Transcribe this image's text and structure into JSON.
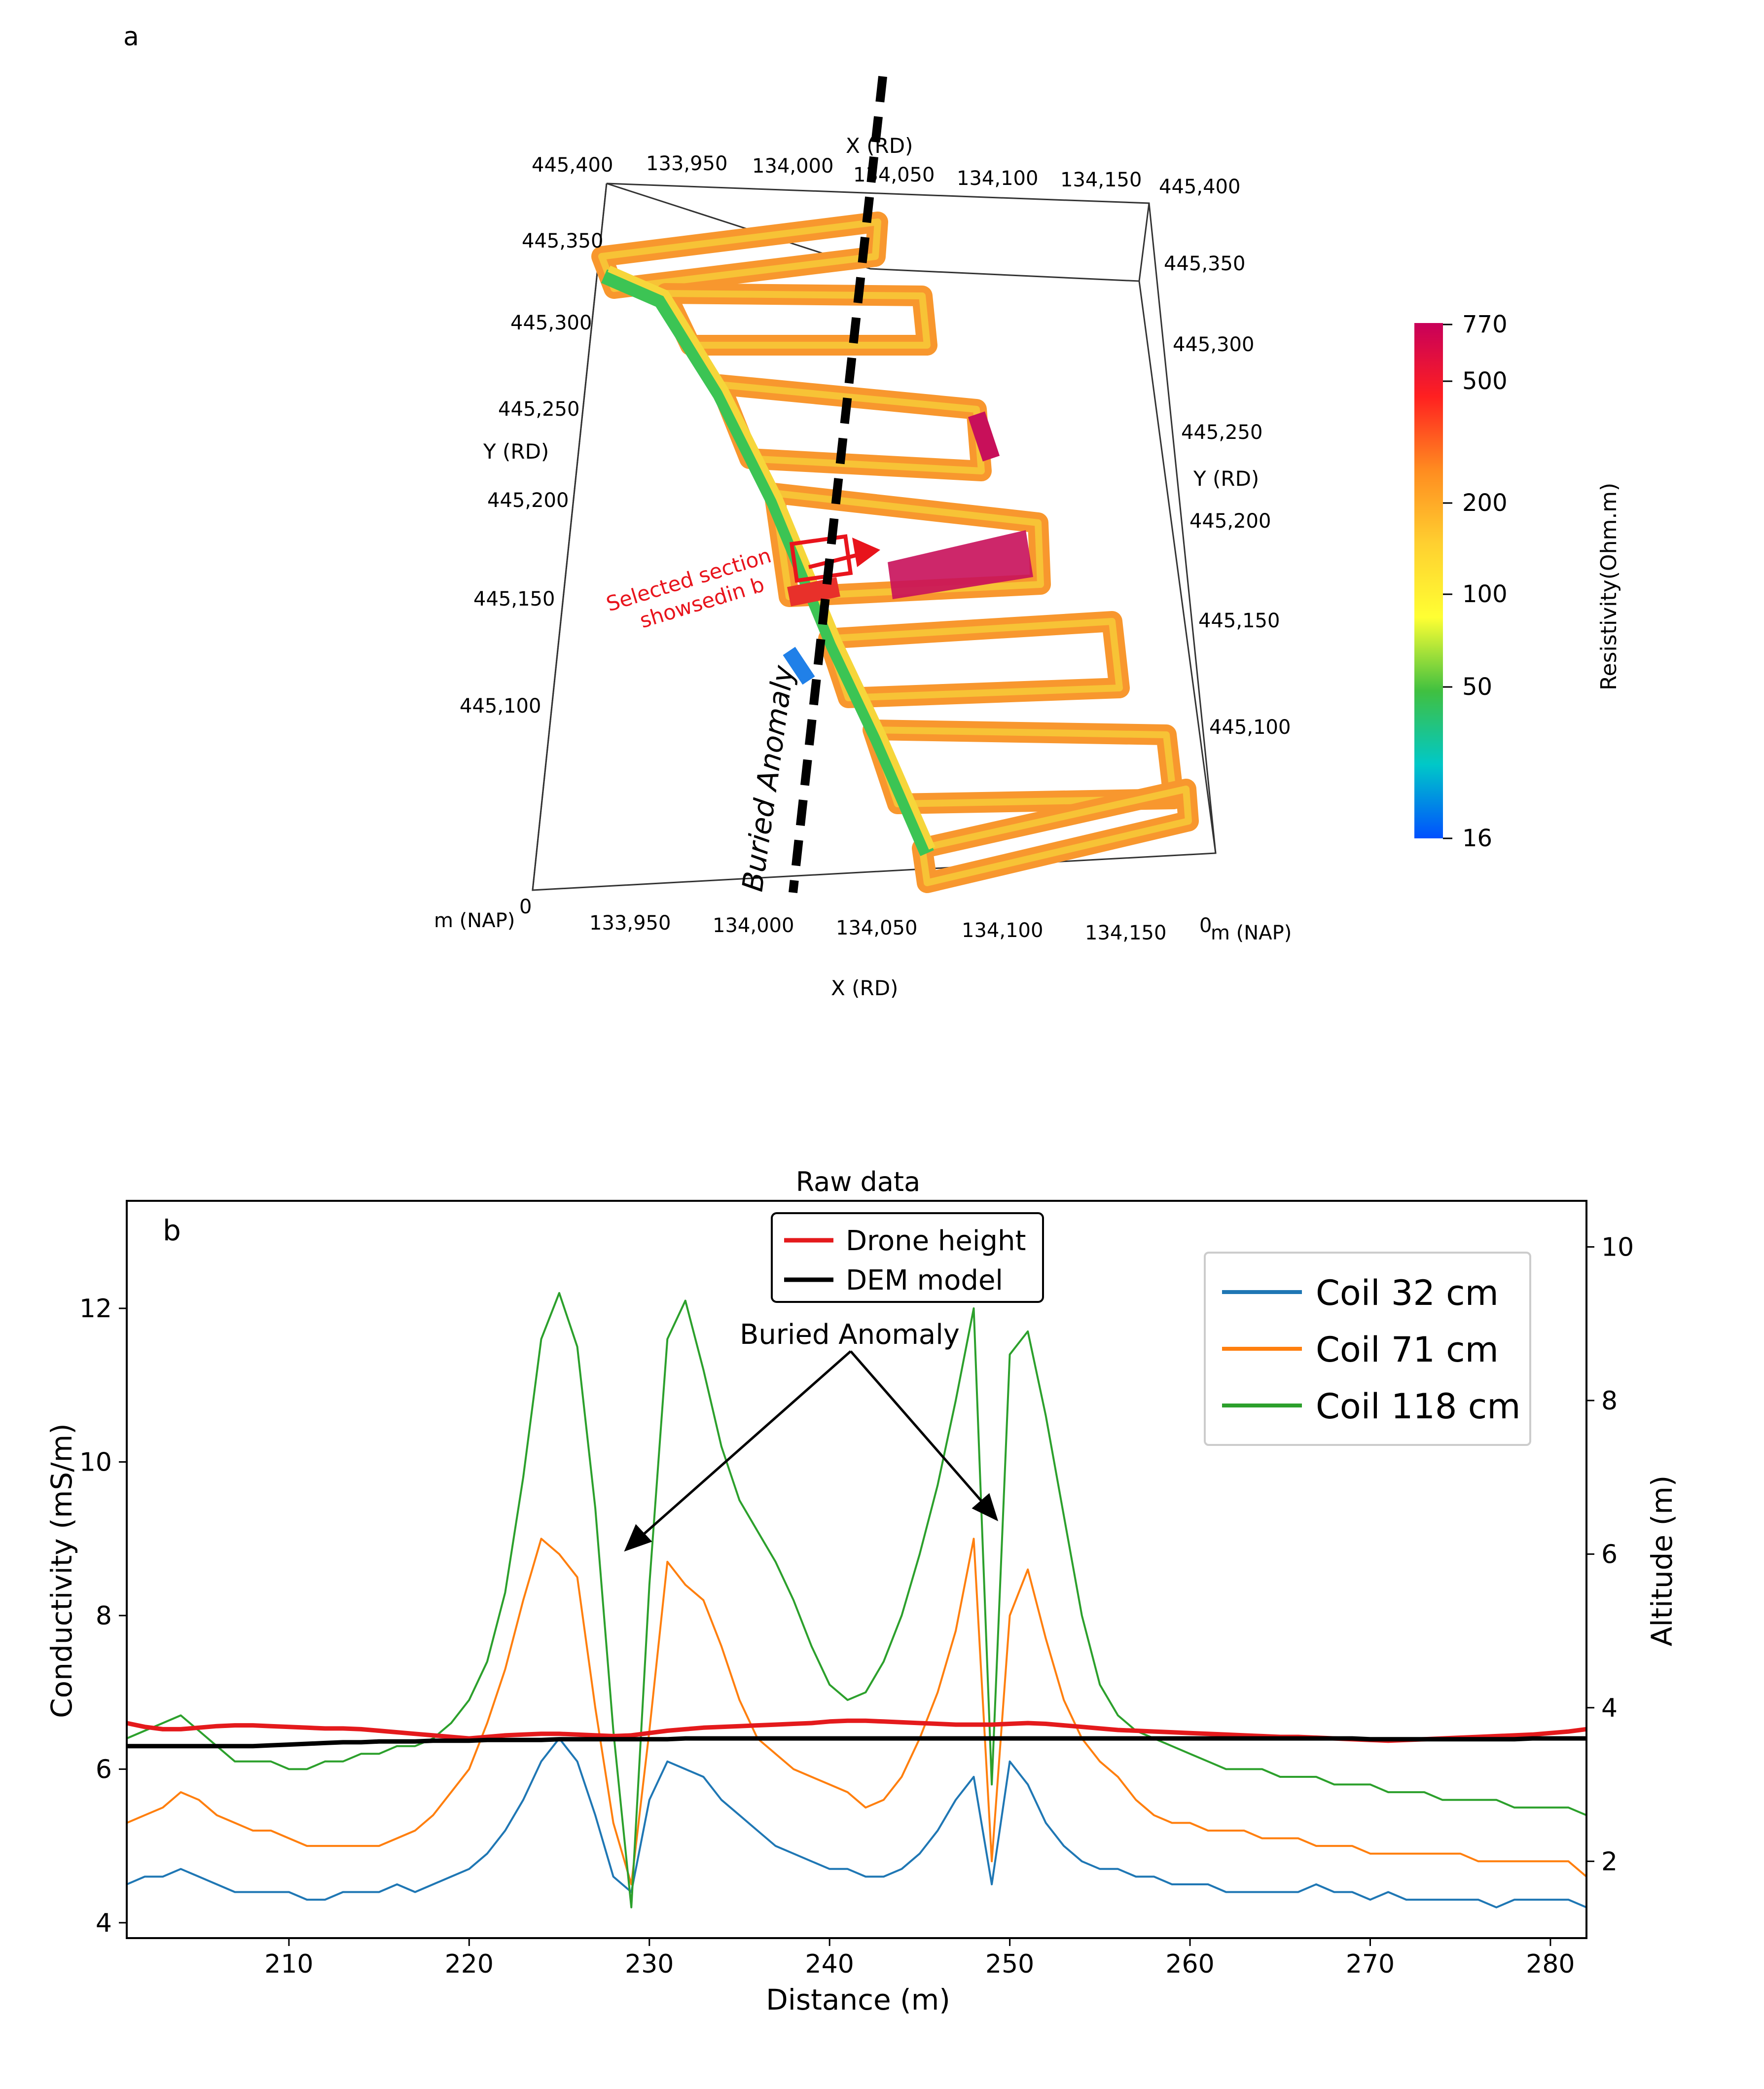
{
  "panel_a": {
    "label": "a",
    "colorbar": {
      "title": "Resistivity(Ohm.m)",
      "ticks": [
        "770",
        "500",
        "200",
        "100",
        "50",
        "16"
      ],
      "stops": [
        "#c8005a",
        "#ff2020",
        "#ff8c20",
        "#ffd030",
        "#ffff33",
        "#40c040",
        "#00c8c8",
        "#0050ff"
      ]
    },
    "annotations": {
      "selected_section": "Selected section\nshowsedin b",
      "buried_anomaly": "Buried Anomaly"
    },
    "axes": {
      "x_label": "X (RD)",
      "y_label": "Y (RD)",
      "z_label": "m (NAP)",
      "z_zero": "0",
      "x_top_ticks": [
        "445,400",
        "133,950",
        "134,000",
        "134,050",
        "134,100",
        "134,150",
        "445,400"
      ],
      "x_bottom_ticks": [
        "133,950",
        "134,000",
        "134,050",
        "134,100",
        "134,150"
      ],
      "y_left_ticks": [
        "445,350",
        "445,300",
        "445,250",
        "445,200",
        "445,150",
        "445,100"
      ],
      "y_right_ticks": [
        "445,350",
        "445,300",
        "445,250",
        "445,200",
        "445,150",
        "445,100"
      ]
    }
  },
  "chart_data": {
    "type": "line",
    "panel_label": "b",
    "title": "Raw data",
    "xlabel": "Distance (m)",
    "ylabel": "Conductivity (mS/m)",
    "y2label": "Altitude (m)",
    "xlim": [
      201,
      282
    ],
    "ylim": [
      3.8,
      13.4
    ],
    "y2lim": [
      1.0,
      10.6
    ],
    "xticks": [
      210,
      220,
      230,
      240,
      250,
      260,
      270,
      280
    ],
    "yticks": [
      4,
      6,
      8,
      10,
      12
    ],
    "y2ticks": [
      2,
      4,
      6,
      8,
      10
    ],
    "annotation": "Buried Anomaly",
    "x": [
      201,
      202,
      203,
      204,
      205,
      206,
      207,
      208,
      209,
      210,
      211,
      212,
      213,
      214,
      215,
      216,
      217,
      218,
      219,
      220,
      221,
      222,
      223,
      224,
      225,
      226,
      227,
      228,
      229,
      230,
      231,
      232,
      233,
      234,
      235,
      236,
      237,
      238,
      239,
      240,
      241,
      242,
      243,
      244,
      245,
      246,
      247,
      248,
      249,
      250,
      251,
      252,
      253,
      254,
      255,
      256,
      257,
      258,
      259,
      260,
      261,
      262,
      263,
      264,
      265,
      266,
      267,
      268,
      269,
      270,
      271,
      272,
      273,
      274,
      275,
      276,
      277,
      278,
      279,
      280,
      281,
      282
    ],
    "series": [
      {
        "name": "Coil 32 cm",
        "axis": "left",
        "color": "#1f77b4",
        "values": [
          4.5,
          4.6,
          4.6,
          4.7,
          4.6,
          4.5,
          4.4,
          4.4,
          4.4,
          4.4,
          4.3,
          4.3,
          4.4,
          4.4,
          4.4,
          4.5,
          4.4,
          4.5,
          4.6,
          4.7,
          4.9,
          5.2,
          5.6,
          6.1,
          6.4,
          6.1,
          5.4,
          4.6,
          4.4,
          5.6,
          6.1,
          6.0,
          5.9,
          5.6,
          5.4,
          5.2,
          5.0,
          4.9,
          4.8,
          4.7,
          4.7,
          4.6,
          4.6,
          4.7,
          4.9,
          5.2,
          5.6,
          5.9,
          4.5,
          6.1,
          5.8,
          5.3,
          5.0,
          4.8,
          4.7,
          4.7,
          4.6,
          4.6,
          4.5,
          4.5,
          4.5,
          4.4,
          4.4,
          4.4,
          4.4,
          4.4,
          4.5,
          4.4,
          4.4,
          4.3,
          4.4,
          4.3,
          4.3,
          4.3,
          4.3,
          4.3,
          4.2,
          4.3,
          4.3,
          4.3,
          4.3,
          4.2
        ]
      },
      {
        "name": "Coil 71 cm",
        "axis": "left",
        "color": "#ff7f0e",
        "values": [
          5.3,
          5.4,
          5.5,
          5.7,
          5.6,
          5.4,
          5.3,
          5.2,
          5.2,
          5.1,
          5.0,
          5.0,
          5.0,
          5.0,
          5.0,
          5.1,
          5.2,
          5.4,
          5.7,
          6.0,
          6.6,
          7.3,
          8.2,
          9.0,
          8.8,
          8.5,
          6.8,
          5.3,
          4.5,
          6.5,
          8.7,
          8.4,
          8.2,
          7.6,
          6.9,
          6.4,
          6.2,
          6.0,
          5.9,
          5.8,
          5.7,
          5.5,
          5.6,
          5.9,
          6.4,
          7.0,
          7.8,
          9.0,
          4.8,
          8.0,
          8.6,
          7.7,
          6.9,
          6.4,
          6.1,
          5.9,
          5.6,
          5.4,
          5.3,
          5.3,
          5.2,
          5.2,
          5.2,
          5.1,
          5.1,
          5.1,
          5.0,
          5.0,
          5.0,
          4.9,
          4.9,
          4.9,
          4.9,
          4.9,
          4.9,
          4.8,
          4.8,
          4.8,
          4.8,
          4.8,
          4.8,
          4.6
        ]
      },
      {
        "name": "Coil 118 cm",
        "axis": "left",
        "color": "#2ca02c",
        "values": [
          6.4,
          6.5,
          6.6,
          6.7,
          6.5,
          6.3,
          6.1,
          6.1,
          6.1,
          6.0,
          6.0,
          6.1,
          6.1,
          6.2,
          6.2,
          6.3,
          6.3,
          6.4,
          6.6,
          6.9,
          7.4,
          8.3,
          9.8,
          11.6,
          12.2,
          11.5,
          9.4,
          6.5,
          4.2,
          8.4,
          11.6,
          12.1,
          11.2,
          10.2,
          9.5,
          9.1,
          8.7,
          8.2,
          7.6,
          7.1,
          6.9,
          7.0,
          7.4,
          8.0,
          8.8,
          9.7,
          10.8,
          12.0,
          5.8,
          11.4,
          11.7,
          10.6,
          9.3,
          8.0,
          7.1,
          6.7,
          6.5,
          6.4,
          6.3,
          6.2,
          6.1,
          6.0,
          6.0,
          6.0,
          5.9,
          5.9,
          5.9,
          5.8,
          5.8,
          5.8,
          5.7,
          5.7,
          5.7,
          5.6,
          5.6,
          5.6,
          5.6,
          5.5,
          5.5,
          5.5,
          5.5,
          5.4
        ]
      },
      {
        "name": "Drone height",
        "axis": "right",
        "color": "#e41a1c",
        "values": [
          3.8,
          3.75,
          3.72,
          3.72,
          3.74,
          3.76,
          3.77,
          3.77,
          3.76,
          3.75,
          3.74,
          3.73,
          3.73,
          3.72,
          3.7,
          3.68,
          3.66,
          3.64,
          3.62,
          3.6,
          3.62,
          3.64,
          3.65,
          3.66,
          3.66,
          3.65,
          3.64,
          3.63,
          3.64,
          3.67,
          3.7,
          3.72,
          3.74,
          3.75,
          3.76,
          3.77,
          3.78,
          3.79,
          3.8,
          3.82,
          3.83,
          3.83,
          3.82,
          3.81,
          3.8,
          3.79,
          3.78,
          3.78,
          3.78,
          3.79,
          3.8,
          3.79,
          3.77,
          3.75,
          3.73,
          3.71,
          3.7,
          3.69,
          3.68,
          3.67,
          3.66,
          3.65,
          3.64,
          3.63,
          3.62,
          3.62,
          3.61,
          3.6,
          3.59,
          3.58,
          3.57,
          3.58,
          3.59,
          3.6,
          3.61,
          3.62,
          3.63,
          3.64,
          3.65,
          3.67,
          3.69,
          3.72
        ]
      },
      {
        "name": "DEM model",
        "axis": "right",
        "color": "#000000",
        "values": [
          3.5,
          3.5,
          3.5,
          3.5,
          3.5,
          3.5,
          3.5,
          3.5,
          3.51,
          3.52,
          3.53,
          3.54,
          3.55,
          3.55,
          3.56,
          3.56,
          3.56,
          3.57,
          3.57,
          3.57,
          3.58,
          3.58,
          3.58,
          3.58,
          3.59,
          3.59,
          3.59,
          3.59,
          3.59,
          3.59,
          3.59,
          3.6,
          3.6,
          3.6,
          3.6,
          3.6,
          3.6,
          3.6,
          3.6,
          3.6,
          3.6,
          3.6,
          3.6,
          3.6,
          3.6,
          3.6,
          3.6,
          3.6,
          3.6,
          3.6,
          3.6,
          3.6,
          3.6,
          3.6,
          3.6,
          3.6,
          3.6,
          3.6,
          3.6,
          3.6,
          3.6,
          3.6,
          3.6,
          3.6,
          3.6,
          3.6,
          3.6,
          3.6,
          3.6,
          3.59,
          3.59,
          3.59,
          3.59,
          3.59,
          3.59,
          3.59,
          3.59,
          3.59,
          3.6,
          3.6,
          3.6,
          3.6
        ]
      }
    ],
    "legend_left": [
      "Drone height",
      "DEM model"
    ],
    "legend_right": [
      "Coil 32 cm",
      "Coil 71 cm",
      "Coil 118 cm"
    ]
  }
}
